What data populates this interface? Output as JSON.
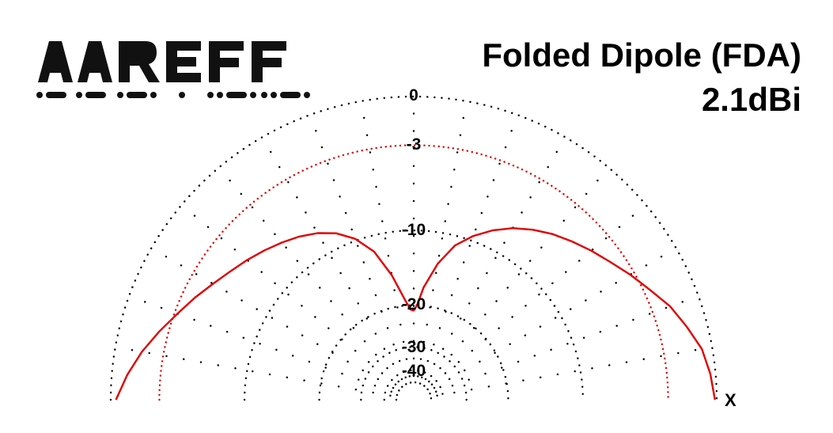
{
  "logo": {
    "text": "AAREFF"
  },
  "chart_data": {
    "type": "polar",
    "title": "Folded Dipole (FDA)",
    "subtitle": "2.1dBi",
    "radial_ticks": [
      "0",
      "-3",
      "-10",
      "-20",
      "-30",
      "-40"
    ],
    "axis_label": "X",
    "grid": true,
    "colors": {
      "pattern": "#e00000",
      "reference": "#e00000",
      "grid": "#000000"
    },
    "series": [
      {
        "style": "solid",
        "angles_deg": [
          0,
          5,
          10,
          15,
          20,
          25,
          30,
          35,
          40,
          45,
          50,
          55,
          60,
          65,
          70,
          75,
          80,
          85,
          88,
          90,
          92,
          95,
          100,
          105,
          110,
          115,
          120,
          125,
          130,
          135,
          140,
          145,
          150,
          155,
          160,
          165,
          170,
          175,
          180
        ],
        "gain_db": [
          -0.1,
          -0.3,
          -0.6,
          -1.2,
          -1.8,
          -2.6,
          -3.3,
          -4.0,
          -4.6,
          -5.2,
          -5.8,
          -6.5,
          -7.3,
          -8.3,
          -9.5,
          -11.0,
          -13.5,
          -17.0,
          -20.0,
          -21.0,
          -20.8,
          -19.0,
          -15.0,
          -11.7,
          -9.8,
          -8.6,
          -7.8,
          -7.2,
          -6.7,
          -6.2,
          -5.7,
          -5.2,
          -4.6,
          -3.9,
          -3.2,
          -2.4,
          -1.6,
          -0.9,
          -0.3
        ]
      },
      {
        "style": "dotted",
        "name": "-3",
        "constant_db": -3
      }
    ]
  }
}
